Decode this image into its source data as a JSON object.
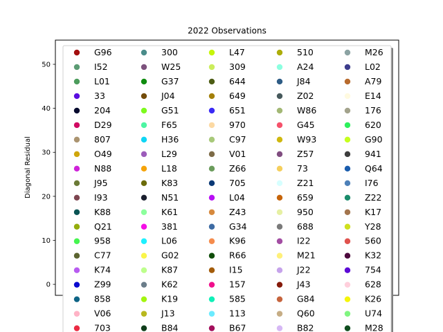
{
  "chart_data": {
    "type": "scatter",
    "title": "2022 Observations",
    "xlabel": "",
    "ylabel": "Diagonal Residual",
    "ylim": [
      -2.5,
      55.5
    ],
    "yticks": [
      0,
      10,
      20,
      30,
      40,
      50
    ],
    "xticks": [],
    "grid": false,
    "legend": {
      "placement": "center",
      "columns": 5,
      "entries": [
        {
          "label": "G96",
          "color": "#a30f0f"
        },
        {
          "label": "I52",
          "color": "#5c9c74"
        },
        {
          "label": "L01",
          "color": "#4c9c5c"
        },
        {
          "label": "33",
          "color": "#5a0ee0"
        },
        {
          "label": "204",
          "color": "#060a2e"
        },
        {
          "label": "D29",
          "color": "#d10a62"
        },
        {
          "label": "807",
          "color": "#ab9470"
        },
        {
          "label": "O49",
          "color": "#cfa60c"
        },
        {
          "label": "N88",
          "color": "#cf22d9"
        },
        {
          "label": "J95",
          "color": "#6b7a36"
        },
        {
          "label": "I93",
          "color": "#7d4550"
        },
        {
          "label": "K88",
          "color": "#0a5454"
        },
        {
          "label": "Q21",
          "color": "#94ad0c"
        },
        {
          "label": "958",
          "color": "#45f54f"
        },
        {
          "label": "C77",
          "color": "#5c6430"
        },
        {
          "label": "K74",
          "color": "#b85cf0"
        },
        {
          "label": "Z99",
          "color": "#0a0acf"
        },
        {
          "label": "858",
          "color": "#0e6485"
        },
        {
          "label": "V06",
          "color": "#ffb3c6"
        },
        {
          "label": "703",
          "color": "#eb2a42"
        },
        {
          "label": "300",
          "color": "#4a8c8a"
        },
        {
          "label": "W25",
          "color": "#7d527d"
        },
        {
          "label": "G37",
          "color": "#0f8c0f"
        },
        {
          "label": "J04",
          "color": "#734c0a"
        },
        {
          "label": "G51",
          "color": "#7dfa1e"
        },
        {
          "label": "F65",
          "color": "#4df5a3"
        },
        {
          "label": "H36",
          "color": "#0fd6f5"
        },
        {
          "label": "L29",
          "color": "#9c5cba"
        },
        {
          "label": "L18",
          "color": "#f5a30a"
        },
        {
          "label": "K83",
          "color": "#6b6b0a"
        },
        {
          "label": "N51",
          "color": "#1a1f2e"
        },
        {
          "label": "K61",
          "color": "#8cff9c"
        },
        {
          "label": "381",
          "color": "#f50fe6"
        },
        {
          "label": "L06",
          "color": "#1ef0ff"
        },
        {
          "label": "G02",
          "color": "#faf54a"
        },
        {
          "label": "K87",
          "color": "#bdff8c"
        },
        {
          "label": "K62",
          "color": "#6b7d8a"
        },
        {
          "label": "K19",
          "color": "#a3f50f"
        },
        {
          "label": "J13",
          "color": "#b8b81e"
        },
        {
          "label": "B84",
          "color": "#0f3d1a"
        },
        {
          "label": "L47",
          "color": "#c6f50a"
        },
        {
          "label": "309",
          "color": "#cbed5c"
        },
        {
          "label": "644",
          "color": "#4c5c14"
        },
        {
          "label": "649",
          "color": "#a3800a"
        },
        {
          "label": "651",
          "color": "#3a2af5"
        },
        {
          "label": "970",
          "color": "#fcd9a3"
        },
        {
          "label": "C97",
          "color": "#a8c97a"
        },
        {
          "label": "V01",
          "color": "#7d6b47"
        },
        {
          "label": "Z66",
          "color": "#6b9c5c"
        },
        {
          "label": "705",
          "color": "#0a3875"
        },
        {
          "label": "L04",
          "color": "#b80ff5"
        },
        {
          "label": "Z43",
          "color": "#d6893d"
        },
        {
          "label": "G34",
          "color": "#3d6ba3"
        },
        {
          "label": "K96",
          "color": "#f58c4d"
        },
        {
          "label": "R66",
          "color": "#0f4d0a"
        },
        {
          "label": "I15",
          "color": "#a35c0a"
        },
        {
          "label": "157",
          "color": "#f00f8c"
        },
        {
          "label": "585",
          "color": "#0ff0b8"
        },
        {
          "label": "113",
          "color": "#6bebff"
        },
        {
          "label": "B67",
          "color": "#a30f5c"
        },
        {
          "label": "510",
          "color": "#adad0a"
        },
        {
          "label": "A24",
          "color": "#8cffe0"
        },
        {
          "label": "J84",
          "color": "#2e5c85"
        },
        {
          "label": "Z02",
          "color": "#47595c"
        },
        {
          "label": "W86",
          "color": "#a3b875"
        },
        {
          "label": "G45",
          "color": "#f5526b"
        },
        {
          "label": "W93",
          "color": "#cfb80f"
        },
        {
          "label": "Z57",
          "color": "#804d80"
        },
        {
          "label": "73",
          "color": "#f5cf5c"
        },
        {
          "label": "Z21",
          "color": "#d6ffff"
        },
        {
          "label": "659",
          "color": "#c6640a"
        },
        {
          "label": "950",
          "color": "#e6f0a3"
        },
        {
          "label": "688",
          "color": "#7a7a7a"
        },
        {
          "label": "I22",
          "color": "#a34da3"
        },
        {
          "label": "M21",
          "color": "#fff07a"
        },
        {
          "label": "J22",
          "color": "#c6a3eb"
        },
        {
          "label": "J43",
          "color": "#851a0a"
        },
        {
          "label": "G84",
          "color": "#c6643d"
        },
        {
          "label": "Q60",
          "color": "#c6ad85"
        },
        {
          "label": "B82",
          "color": "#d6b8f5"
        },
        {
          "label": "M26",
          "color": "#8ca3a3"
        },
        {
          "label": "L02",
          "color": "#3d3d8c"
        },
        {
          "label": "A79",
          "color": "#b86b2e"
        },
        {
          "label": "E14",
          "color": "#fffae0"
        },
        {
          "label": "176",
          "color": "#a3a38c"
        },
        {
          "label": "620",
          "color": "#2ef05c"
        },
        {
          "label": "G90",
          "color": "#c6ff1e"
        },
        {
          "label": "941",
          "color": "#3d3d3d"
        },
        {
          "label": "Q64",
          "color": "#1a5cad"
        },
        {
          "label": "I76",
          "color": "#4d80b8"
        },
        {
          "label": "Z22",
          "color": "#1a8c6b"
        },
        {
          "label": "K17",
          "color": "#a3754d"
        },
        {
          "label": "Y28",
          "color": "#cfe01e"
        },
        {
          "label": "560",
          "color": "#e0524d"
        },
        {
          "label": "K32",
          "color": "#4d0a3d"
        },
        {
          "label": "754",
          "color": "#5c0ad6"
        },
        {
          "label": "628",
          "color": "#ffcfdc"
        },
        {
          "label": "K26",
          "color": "#f5f50a"
        },
        {
          "label": "U74",
          "color": "#80f580"
        },
        {
          "label": "M28",
          "color": "#0f4d1e"
        }
      ]
    }
  }
}
